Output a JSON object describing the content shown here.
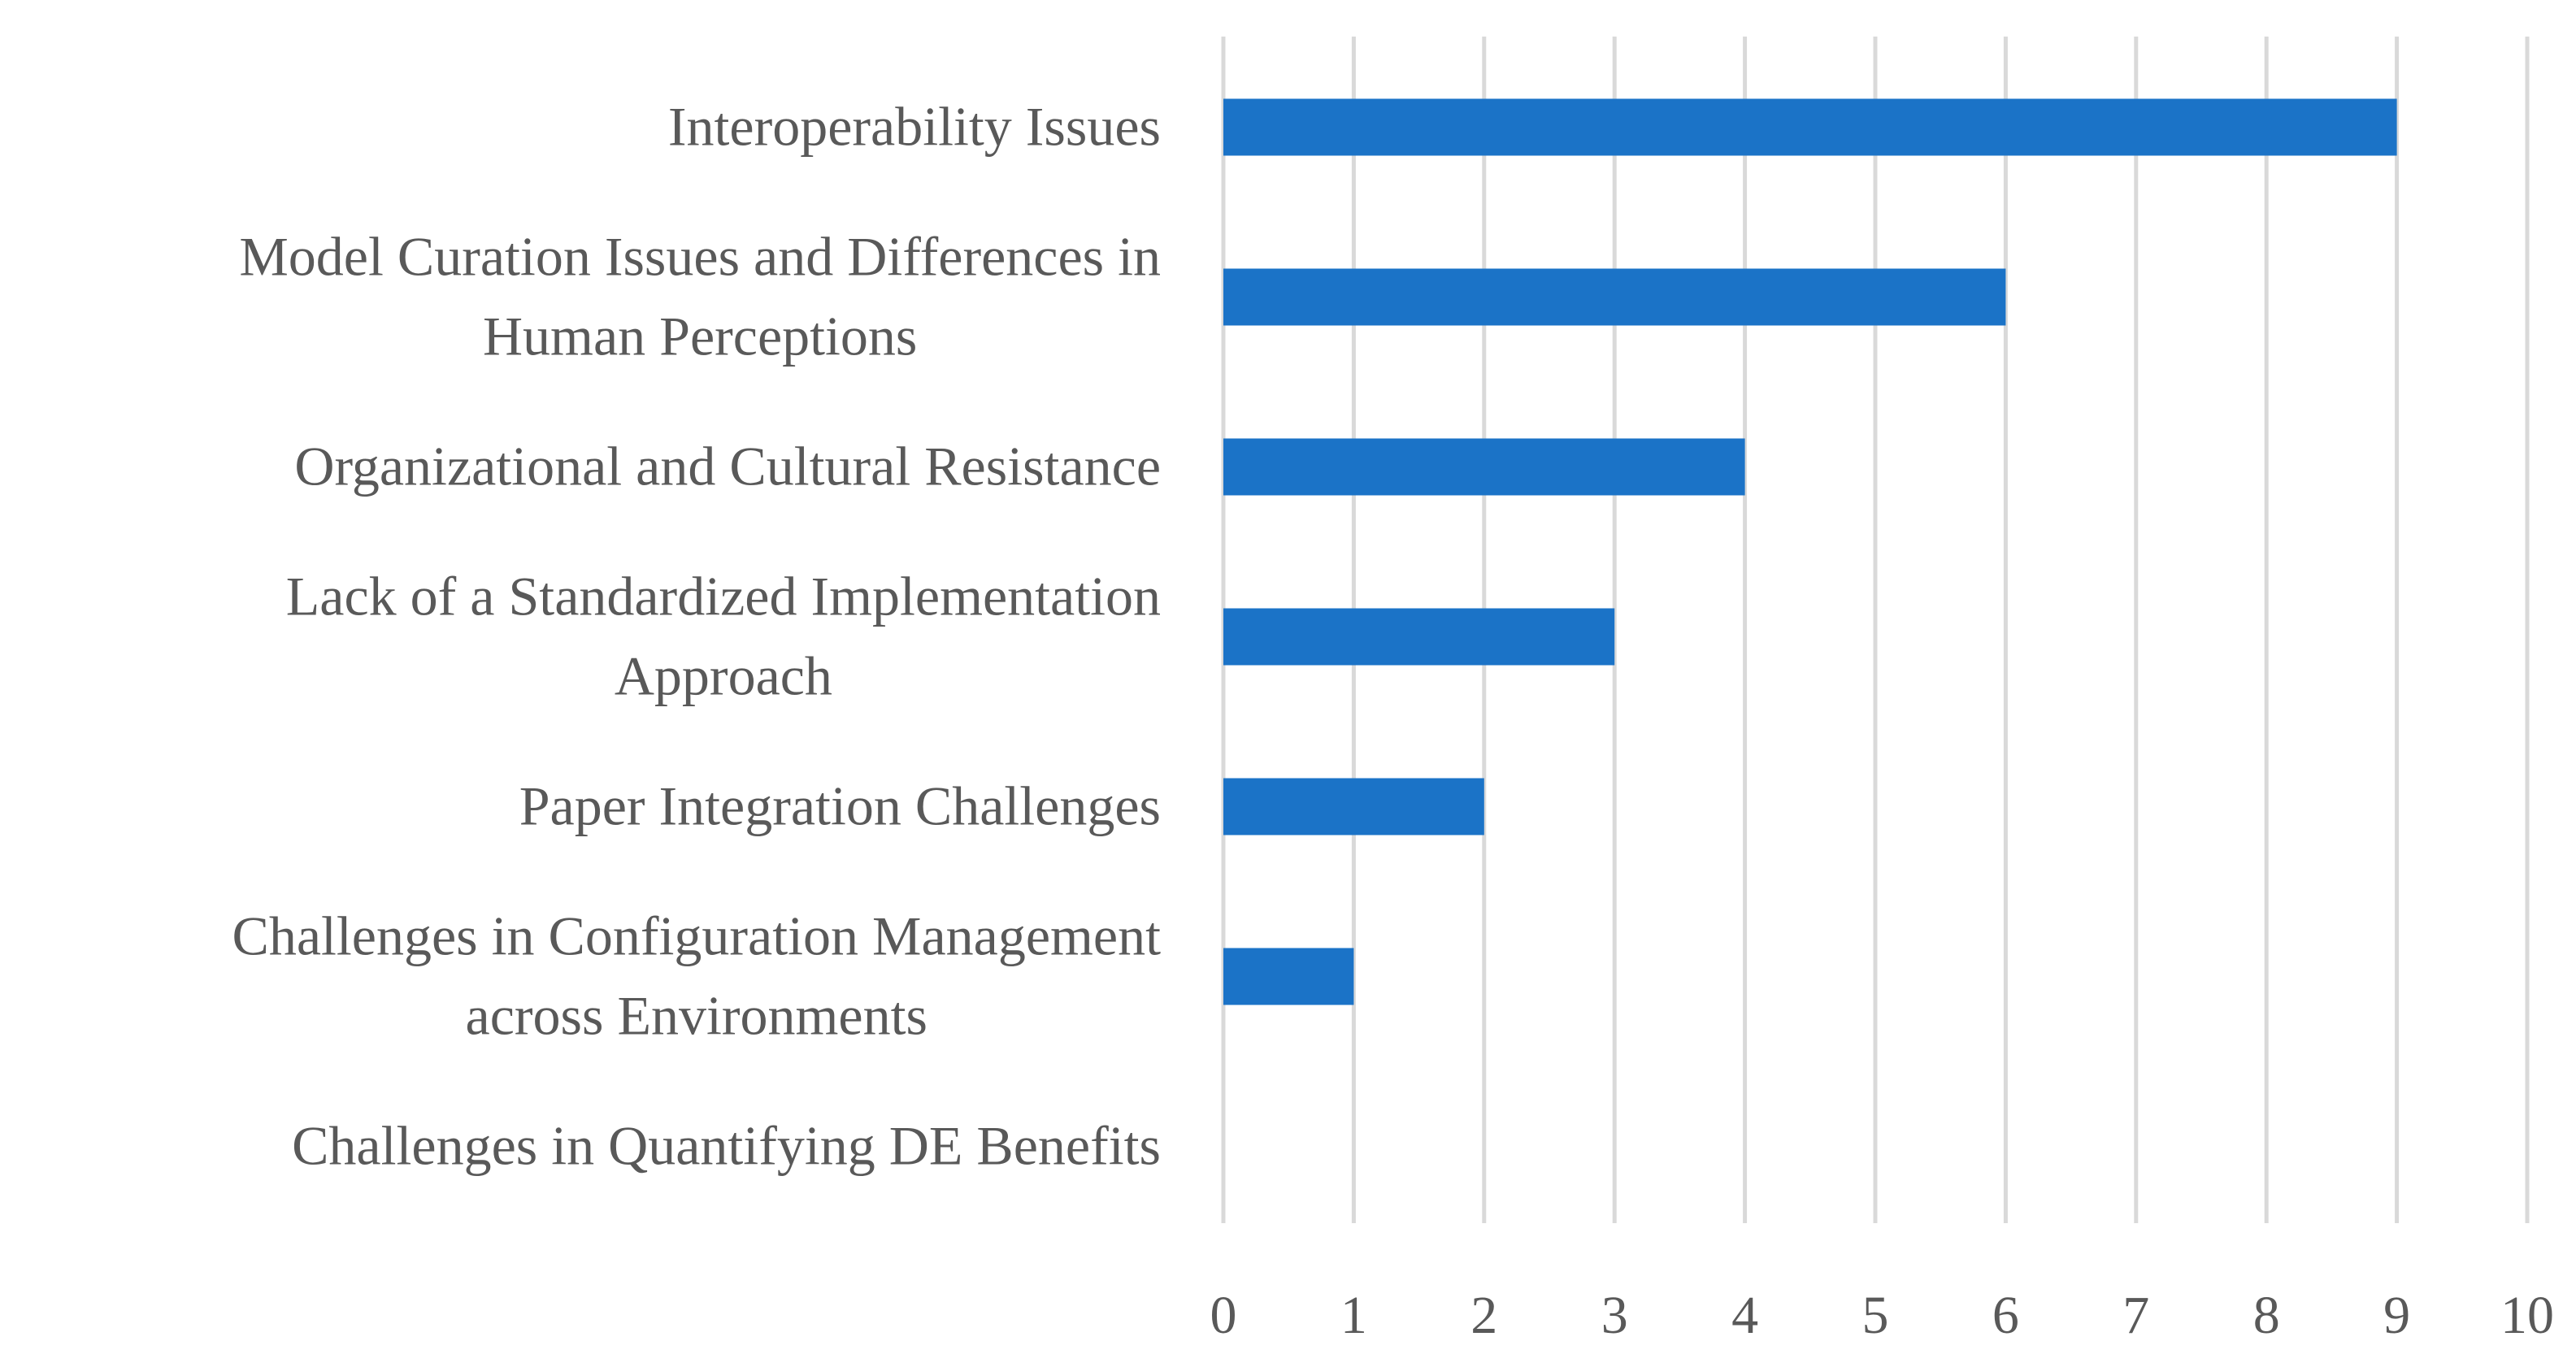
{
  "chart_data": {
    "type": "bar",
    "orientation": "horizontal",
    "title": "",
    "xlabel": "",
    "ylabel": "",
    "categories": [
      [
        "Interoperability Issues"
      ],
      [
        "Model Curation Issues and Differences in",
        "Human Perceptions"
      ],
      [
        "Organizational and Cultural Resistance"
      ],
      [
        "Lack of a Standardized Implementation",
        "Approach"
      ],
      [
        "Paper Integration Challenges"
      ],
      [
        "Challenges in Configuration Management",
        "across Environments"
      ],
      [
        "Challenges in Quantifying DE Benefits"
      ]
    ],
    "values": [
      9,
      6,
      4,
      3,
      2,
      1,
      0
    ],
    "xlim": [
      0,
      10
    ],
    "xticks": [
      "0",
      "1",
      "2",
      "3",
      "4",
      "5",
      "6",
      "7",
      "8",
      "9",
      "10"
    ],
    "grid": "vertical",
    "legend": "none",
    "bar_color": "#1b73c7",
    "grid_color": "#d9d9d9",
    "text_color": "#595959"
  }
}
